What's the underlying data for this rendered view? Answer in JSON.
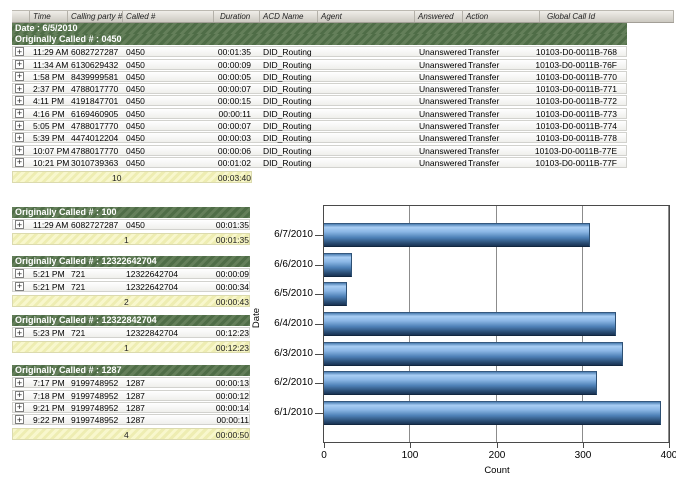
{
  "report": {
    "columns": [
      "Time",
      "Calling party #",
      "Called #",
      "Duration",
      "ACD Name",
      "Agent",
      "Answered",
      "Action",
      "Global Call Id"
    ],
    "date_band": "Date : 6/5/2010",
    "expand_icon": "+",
    "top_section": {
      "title": "Originally Called # : 0450",
      "rows": [
        {
          "time": "11:29 AM",
          "calling": "6082727287",
          "called": "0450",
          "duration": "00:01:35",
          "acd": "DID_Routing",
          "agent": "",
          "answered": "Unanswered",
          "action": "Transfer",
          "global_id": "10103-D0-0011B-768"
        },
        {
          "time": "11:34 AM",
          "calling": "6130629432",
          "called": "0450",
          "duration": "00:00:09",
          "acd": "DID_Routing",
          "agent": "",
          "answered": "Unanswered",
          "action": "Transfer",
          "global_id": "10103-D0-0011B-76F"
        },
        {
          "time": "1:58 PM",
          "calling": "8439999581",
          "called": "0450",
          "duration": "00:00:05",
          "acd": "DID_Routing",
          "agent": "",
          "answered": "Unanswered",
          "action": "Transfer",
          "global_id": "10103-D0-0011B-770"
        },
        {
          "time": "2:37 PM",
          "calling": "4788017770",
          "called": "0450",
          "duration": "00:00:07",
          "acd": "DID_Routing",
          "agent": "",
          "answered": "Unanswered",
          "action": "Transfer",
          "global_id": "10103-D0-0011B-771"
        },
        {
          "time": "4:11 PM",
          "calling": "4191847701",
          "called": "0450",
          "duration": "00:00:15",
          "acd": "DID_Routing",
          "agent": "",
          "answered": "Unanswered",
          "action": "Transfer",
          "global_id": "10103-D0-0011B-772"
        },
        {
          "time": "4:16 PM",
          "calling": "6169460905",
          "called": "0450",
          "duration": "00:00:11",
          "acd": "DID_Routing",
          "agent": "",
          "answered": "Unanswered",
          "action": "Transfer",
          "global_id": "10103-D0-0011B-773"
        },
        {
          "time": "5:05 PM",
          "calling": "4788017770",
          "called": "0450",
          "duration": "00:00:07",
          "acd": "DID_Routing",
          "agent": "",
          "answered": "Unanswered",
          "action": "Transfer",
          "global_id": "10103-D0-0011B-774"
        },
        {
          "time": "5:39 PM",
          "calling": "4474012204",
          "called": "0450",
          "duration": "00:00:03",
          "acd": "DID_Routing",
          "agent": "",
          "answered": "Unanswered",
          "action": "Transfer",
          "global_id": "10103-D0-0011B-778"
        },
        {
          "time": "10:07 PM",
          "calling": "4788017770",
          "called": "0450",
          "duration": "00:00:06",
          "acd": "DID_Routing",
          "agent": "",
          "answered": "Unanswered",
          "action": "Transfer",
          "global_id": "10103-D0-0011B-77E"
        },
        {
          "time": "10:21 PM",
          "calling": "3010739363",
          "called": "0450",
          "duration": "00:01:02",
          "acd": "DID_Routing",
          "agent": "",
          "answered": "Unanswered",
          "action": "Transfer",
          "global_id": "10103-D0-0011B-77F"
        }
      ],
      "summary": {
        "count": "10",
        "total_duration": "00:03:40"
      }
    },
    "sections": [
      {
        "title": "Originally Called # : 100",
        "rows": [
          {
            "time": "11:29 AM",
            "calling": "6082727287",
            "called": "0450",
            "duration": "00:01:35"
          }
        ],
        "summary": {
          "count": "1",
          "total_duration": "00:01:35"
        }
      },
      {
        "title": "Originally Called # : 12322642704",
        "rows": [
          {
            "time": "5:21 PM",
            "calling": "721",
            "called": "12322642704",
            "duration": "00:00:09"
          },
          {
            "time": "5:21 PM",
            "calling": "721",
            "called": "12322642704",
            "duration": "00:00:34"
          }
        ],
        "summary": {
          "count": "2",
          "total_duration": "00:00:43"
        }
      },
      {
        "title": "Originally Called # : 12322842704",
        "rows": [
          {
            "time": "5:23 PM",
            "calling": "721",
            "called": "12322842704",
            "duration": "00:12:23"
          }
        ],
        "summary": {
          "count": "1",
          "total_duration": "00:12:23"
        }
      },
      {
        "title": "Originally Called # : 1287",
        "rows": [
          {
            "time": "7:17 PM",
            "calling": "9199748952",
            "called": "1287",
            "duration": "00:00:13"
          },
          {
            "time": "7:18 PM",
            "calling": "9199748952",
            "called": "1287",
            "duration": "00:00:12"
          },
          {
            "time": "9:21 PM",
            "calling": "9199748952",
            "called": "1287",
            "duration": "00:00:14"
          },
          {
            "time": "9:22 PM",
            "calling": "9199748952",
            "called": "1287",
            "duration": "00:00:11"
          }
        ],
        "summary": {
          "count": "4",
          "total_duration": "00:00:50"
        }
      }
    ]
  },
  "chart_data": {
    "type": "bar",
    "orientation": "horizontal",
    "categories": [
      "6/7/2010",
      "6/6/2010",
      "6/5/2010",
      "6/4/2010",
      "6/3/2010",
      "6/2/2010",
      "6/1/2010"
    ],
    "values": [
      308,
      32,
      27,
      338,
      347,
      317,
      391
    ],
    "title": "",
    "xlabel": "Count",
    "ylabel": "Date",
    "xlim": [
      0,
      400
    ],
    "xticks": [
      0,
      100,
      200,
      300,
      400
    ],
    "grid": true,
    "legend": "none",
    "bar_color_light": "#a9cef4",
    "bar_color_dark": "#1a3454"
  },
  "colors": {
    "group_band_green": "#557349",
    "summary_yellow": "#f5f4c0",
    "header_gray": "#d9d6ce"
  }
}
